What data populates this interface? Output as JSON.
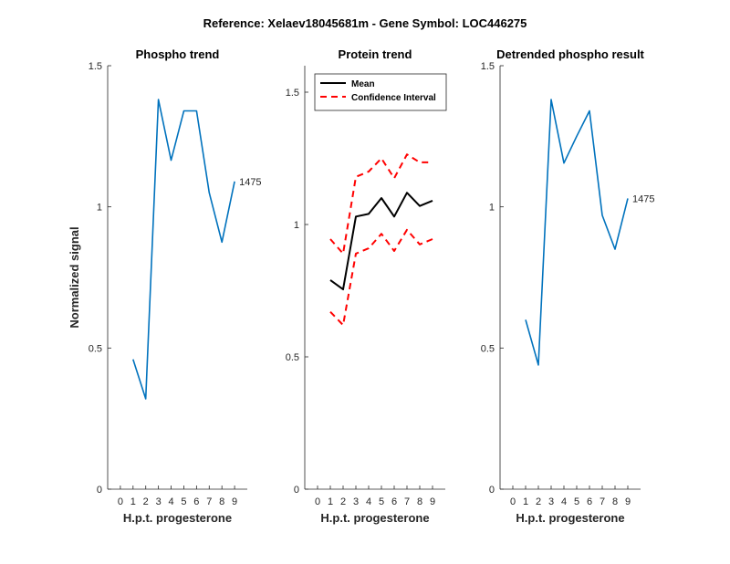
{
  "figure_title": "Reference:  Xelaev18045681m - Gene Symbol:  LOC446275",
  "chart_data": [
    {
      "type": "line",
      "title": "Phospho trend",
      "xlabel": "H.p.t. progesterone",
      "ylabel": "Normalized signal",
      "x_ticks": [
        0,
        1,
        2,
        3,
        4,
        5,
        6,
        7,
        8,
        9
      ],
      "y_ticks": [
        0,
        0.5,
        1,
        1.5
      ],
      "y_tick_labels": [
        "0",
        "0.5",
        "1",
        "1.5"
      ],
      "xlim": [
        -1,
        10
      ],
      "ylim": [
        0,
        1.5
      ],
      "series": [
        {
          "color": "#0072BD",
          "style": "solid",
          "x": [
            1,
            2,
            3,
            4,
            5,
            6,
            7,
            8,
            9
          ],
          "y": [
            0.46,
            0.32,
            1.38,
            1.165,
            1.34,
            1.34,
            1.05,
            0.875,
            1.09
          ],
          "end_label": "1475"
        }
      ]
    },
    {
      "type": "line",
      "title": "Protein trend",
      "xlabel": "H.p.t. progesterone",
      "ylabel": "",
      "x_ticks": [
        0,
        1,
        2,
        3,
        4,
        5,
        6,
        7,
        8,
        9
      ],
      "y_ticks": [
        0,
        0.5,
        1,
        1.5
      ],
      "y_tick_labels": [
        "0",
        "0.5",
        "1",
        "1.5"
      ],
      "xlim": [
        -1,
        10
      ],
      "ylim": [
        0,
        1.6
      ],
      "legend_position": "top-left",
      "series": [
        {
          "name": "Mean",
          "color": "#000000",
          "style": "solid",
          "x": [
            1,
            2,
            3,
            4,
            5,
            6,
            7,
            8,
            9
          ],
          "y": [
            0.79,
            0.755,
            1.03,
            1.04,
            1.1,
            1.03,
            1.12,
            1.07,
            1.09
          ]
        },
        {
          "name": "Confidence Interval",
          "color": "#FF0000",
          "style": "dashed",
          "x": [
            1,
            2,
            3,
            4,
            5,
            6,
            7,
            8,
            9
          ],
          "y": [
            0.945,
            0.89,
            1.18,
            1.2,
            1.25,
            1.175,
            1.265,
            1.235,
            1.235
          ]
        },
        {
          "color": "#FF0000",
          "style": "dashed",
          "x": [
            1,
            2,
            3,
            4,
            5,
            6,
            7,
            8,
            9
          ],
          "y": [
            0.67,
            0.62,
            0.89,
            0.91,
            0.965,
            0.9,
            0.98,
            0.925,
            0.945
          ]
        }
      ]
    },
    {
      "type": "line",
      "title": "Detrended phospho result",
      "xlabel": "H.p.t. progesterone",
      "ylabel": "",
      "x_ticks": [
        0,
        1,
        2,
        3,
        4,
        5,
        6,
        7,
        8,
        9
      ],
      "y_ticks": [
        0,
        0.5,
        1,
        1.5
      ],
      "y_tick_labels": [
        "0",
        "0.5",
        "1",
        "1.5"
      ],
      "xlim": [
        -1,
        10
      ],
      "ylim": [
        0,
        1.5
      ],
      "series": [
        {
          "color": "#0072BD",
          "style": "solid",
          "x": [
            1,
            2,
            3,
            4,
            5,
            6,
            7,
            8,
            9
          ],
          "y": [
            0.6,
            0.44,
            1.38,
            1.155,
            1.25,
            1.34,
            0.97,
            0.85,
            1.03
          ],
          "end_label": "1475"
        }
      ]
    }
  ]
}
